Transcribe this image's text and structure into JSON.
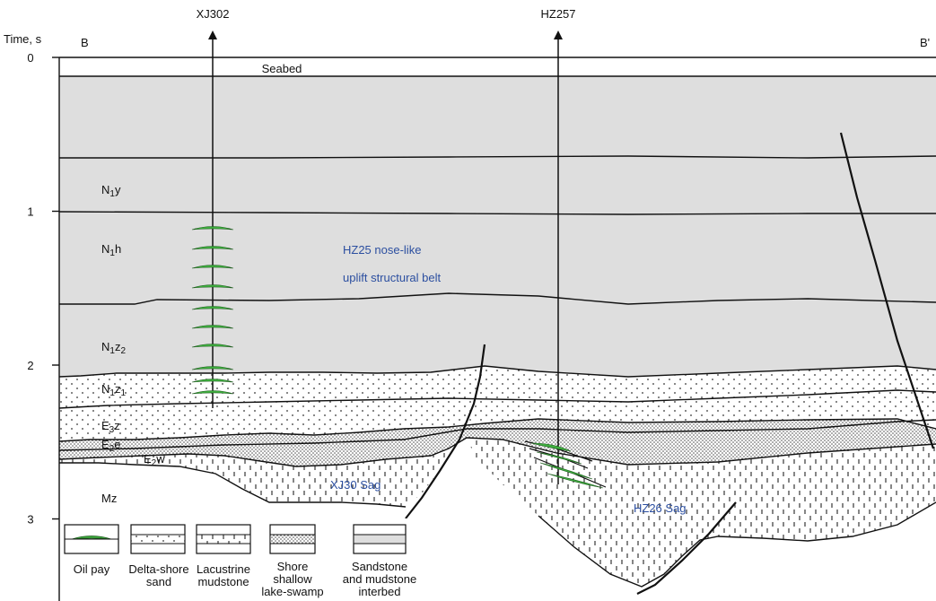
{
  "axis": {
    "label": "Time, s",
    "ticks": [
      "0",
      "1",
      "2",
      "3"
    ],
    "tick_values": [
      0,
      1,
      2,
      3
    ]
  },
  "section_ends": {
    "left": "B",
    "right": "B'"
  },
  "wells": [
    {
      "name": "XJ302"
    },
    {
      "name": "HZ257"
    }
  ],
  "seabed_label": "Seabed",
  "formations": [
    {
      "base": "N",
      "sub": "1",
      "suffix": "y"
    },
    {
      "base": "N",
      "sub": "1",
      "suffix": "h"
    },
    {
      "base": "N",
      "sub": "1",
      "suffix": "z",
      "sub2": "2"
    },
    {
      "base": "N",
      "sub": "1",
      "suffix": "z",
      "sub2": "1"
    },
    {
      "base": "E",
      "sub": "3",
      "suffix": "z"
    },
    {
      "base": "E",
      "sub": "2",
      "suffix": "e"
    },
    {
      "base": "E",
      "sub": "2",
      "suffix": "w"
    },
    {
      "base": "Mz",
      "sub": "",
      "suffix": ""
    }
  ],
  "annotations": {
    "structural_belt_line1": "HZ25 nose-like",
    "structural_belt_line2": "uplift structural belt",
    "sag_left": "XJ30 Sag",
    "sag_right": "HZ26 Sag"
  },
  "legend": [
    {
      "pattern": "oil-pay",
      "lines": [
        "Oil pay"
      ]
    },
    {
      "pattern": "delta-shore-sand",
      "lines": [
        "Delta-shore",
        "sand"
      ]
    },
    {
      "pattern": "lacustrine-mudstone",
      "lines": [
        "Lacustrine",
        "mudstone"
      ]
    },
    {
      "pattern": "shore-lake-swamp",
      "lines": [
        "Shore",
        "shallow",
        "lake-swamp"
      ]
    },
    {
      "pattern": "sandstone-mudstone",
      "lines": [
        "Sandstone",
        "and mudstone",
        "interbed"
      ]
    }
  ],
  "colors": {
    "interbed_fill": "#dedede",
    "oil_green": "#3fae3f",
    "text_blue": "#2c4fa0"
  }
}
